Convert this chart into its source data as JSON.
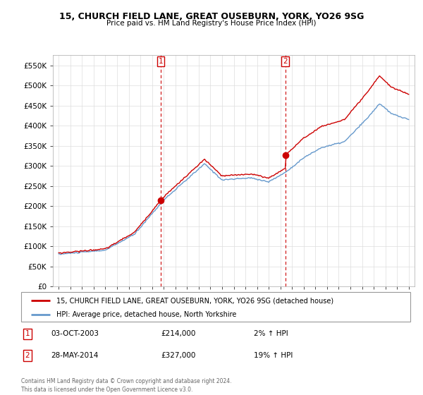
{
  "title": "15, CHURCH FIELD LANE, GREAT OUSEBURN, YORK, YO26 9SG",
  "subtitle": "Price paid vs. HM Land Registry's House Price Index (HPI)",
  "legend_line1": "15, CHURCH FIELD LANE, GREAT OUSEBURN, YORK, YO26 9SG (detached house)",
  "legend_line2": "HPI: Average price, detached house, North Yorkshire",
  "footer": "Contains HM Land Registry data © Crown copyright and database right 2024.\nThis data is licensed under the Open Government Licence v3.0.",
  "transaction1_label": "1",
  "transaction1_date": "03-OCT-2003",
  "transaction1_price": "£214,000",
  "transaction1_hpi": "2% ↑ HPI",
  "transaction2_label": "2",
  "transaction2_date": "28-MAY-2014",
  "transaction2_price": "£327,000",
  "transaction2_hpi": "19% ↑ HPI",
  "transaction1_x": 2003.75,
  "transaction1_y": 214000,
  "transaction2_x": 2014.42,
  "transaction2_y": 327000,
  "ylim": [
    0,
    575000
  ],
  "xlim": [
    1994.5,
    2025.5
  ],
  "red_color": "#cc0000",
  "blue_color": "#6699cc",
  "background_color": "#ffffff",
  "grid_color": "#dddddd",
  "vline_color": "#cc0000",
  "yticks": [
    0,
    50000,
    100000,
    150000,
    200000,
    250000,
    300000,
    350000,
    400000,
    450000,
    500000,
    550000
  ],
  "xticks": [
    1995,
    1996,
    1997,
    1998,
    1999,
    2000,
    2001,
    2002,
    2003,
    2004,
    2005,
    2006,
    2007,
    2008,
    2009,
    2010,
    2011,
    2012,
    2013,
    2014,
    2015,
    2016,
    2017,
    2018,
    2019,
    2020,
    2021,
    2022,
    2023,
    2024,
    2025
  ]
}
